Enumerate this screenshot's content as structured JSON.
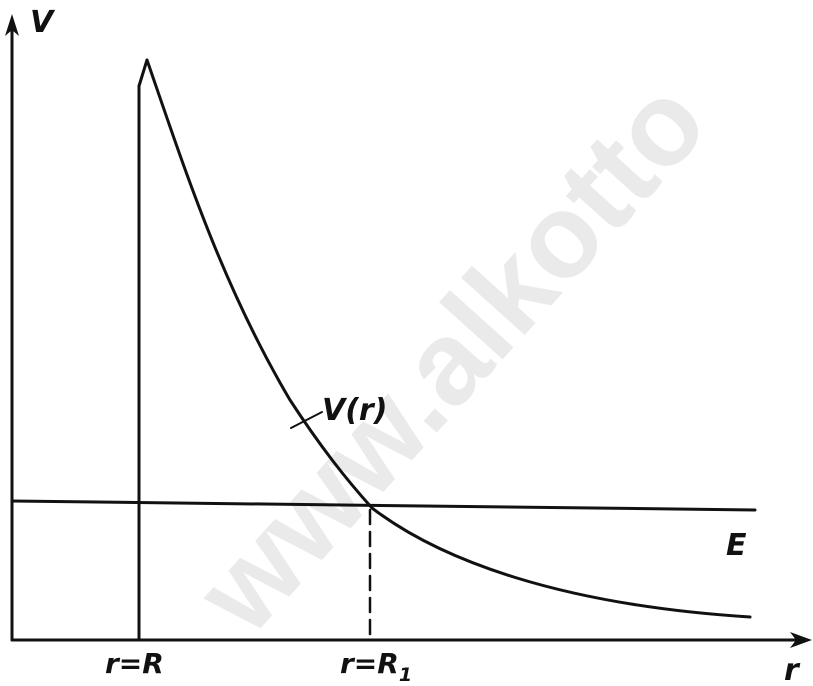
{
  "diagram": {
    "axis_labels": {
      "y": "V",
      "x": "r"
    },
    "curve_label": "V(r)",
    "energy_label": "E",
    "tick_labels": {
      "r_R": "r=R",
      "r_R1_main": "r=R",
      "r_R1_sub": "1"
    },
    "watermark": "www.alkotto"
  },
  "colors": {
    "ink": "#111111",
    "background": "#ffffff",
    "watermark": "#d9d9d9"
  }
}
